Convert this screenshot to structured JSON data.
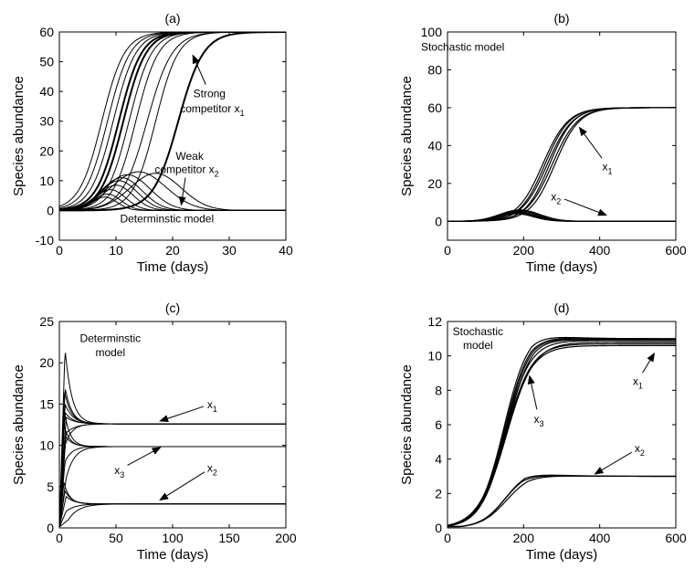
{
  "chart_data": [
    {
      "panel": "(a)",
      "type": "line",
      "title": "(a)",
      "xlabel": "Time (days)",
      "ylabel": "Species abundance",
      "xlim": [
        0,
        40
      ],
      "ylim": [
        -10,
        60
      ],
      "xticks": [
        0,
        10,
        20,
        30,
        40
      ],
      "yticks": [
        -10,
        0,
        10,
        20,
        30,
        40,
        50,
        60
      ],
      "grid": false,
      "series": [
        {
          "group": "x1",
          "logistic": [
            60,
            0.5,
            7.5
          ],
          "weight": 1
        },
        {
          "group": "x1",
          "logistic": [
            60,
            0.5,
            8.5
          ],
          "weight": 1
        },
        {
          "group": "x1",
          "logistic": [
            60,
            0.5,
            9.5
          ],
          "weight": 1
        },
        {
          "group": "x1",
          "logistic": [
            60,
            0.5,
            10.5
          ],
          "weight": 2
        },
        {
          "group": "x1",
          "logistic": [
            60,
            0.5,
            11.3
          ],
          "weight": 2
        },
        {
          "group": "x1",
          "logistic": [
            60,
            0.5,
            12.3
          ],
          "weight": 1
        },
        {
          "group": "x1",
          "logistic": [
            60,
            0.5,
            13.5
          ],
          "weight": 1
        },
        {
          "group": "x1",
          "logistic": [
            60,
            0.45,
            15.5
          ],
          "weight": 1
        },
        {
          "group": "x1",
          "logistic": [
            60,
            0.5,
            17
          ],
          "weight": 1
        },
        {
          "group": "x1",
          "logistic": [
            60,
            0.45,
            21
          ],
          "weight": 2
        },
        {
          "group": "x2",
          "bump": [
            4.5,
            8,
            2.2
          ],
          "weight": 1
        },
        {
          "group": "x2",
          "bump": [
            5.5,
            8.5,
            2.4
          ],
          "weight": 1
        },
        {
          "group": "x2",
          "bump": [
            7,
            9,
            2.7
          ],
          "weight": 1
        },
        {
          "group": "x2",
          "bump": [
            8.5,
            10,
            3.0
          ],
          "weight": 1
        },
        {
          "group": "x2",
          "bump": [
            10,
            10.5,
            3.3
          ],
          "weight": 1
        },
        {
          "group": "x2",
          "bump": [
            11,
            11,
            3.6
          ],
          "weight": 1
        },
        {
          "group": "x2",
          "bump": [
            12,
            12,
            4.0
          ],
          "weight": 1
        },
        {
          "group": "x2",
          "bump": [
            13,
            14,
            4.8
          ],
          "weight": 1
        },
        {
          "group": "x2",
          "bump": [
            12.5,
            17,
            4.5
          ],
          "weight": 1
        }
      ],
      "annotations": [
        {
          "text": "Strong",
          "x": 26.5,
          "y": 38,
          "arrow_to": [
            23.5,
            52.5
          ]
        },
        {
          "text": "competitor x",
          "sub": "1",
          "x": 27,
          "y": 33
        },
        {
          "text": "Weak",
          "x": 23,
          "y": 17
        },
        {
          "text": "competitor x",
          "sub": "2",
          "x": 22.5,
          "y": 12.5,
          "arrow_to": [
            21.5,
            1.5
          ]
        },
        {
          "text": "Determinstic  model",
          "x": 19,
          "y": -4
        }
      ]
    },
    {
      "panel": "(b)",
      "type": "line",
      "title": "(b)",
      "xlabel": "Time (days)",
      "ylabel": "Species abundance",
      "xlim": [
        0,
        600
      ],
      "ylim": [
        -10,
        100
      ],
      "xticks": [
        0,
        200,
        400,
        600
      ],
      "yticks": [
        0,
        20,
        40,
        60,
        80,
        100
      ],
      "grid": false,
      "series": [
        {
          "group": "x1",
          "logistic": [
            60,
            0.03,
            250
          ],
          "weight": 1.2
        },
        {
          "group": "x1",
          "logistic": [
            60,
            0.031,
            256
          ],
          "weight": 1.2
        },
        {
          "group": "x1",
          "logistic": [
            60,
            0.03,
            262
          ],
          "weight": 1.2
        },
        {
          "group": "x1",
          "logistic": [
            60,
            0.032,
            268
          ],
          "weight": 1.2
        },
        {
          "group": "x1",
          "logistic": [
            60,
            0.03,
            275
          ],
          "weight": 1.2
        },
        {
          "group": "x1",
          "logistic": [
            60,
            0.031,
            282
          ],
          "weight": 1.2
        },
        {
          "group": "x2",
          "bump": [
            4.0,
            180,
            45
          ],
          "weight": 1.2
        },
        {
          "group": "x2",
          "bump": [
            4.5,
            182,
            47
          ],
          "weight": 1.2
        },
        {
          "group": "x2",
          "bump": [
            5.0,
            185,
            48
          ],
          "weight": 1.2
        },
        {
          "group": "x2",
          "bump": [
            5.5,
            188,
            50
          ],
          "weight": 1.2
        },
        {
          "group": "x2",
          "bump": [
            6.0,
            190,
            52
          ],
          "weight": 1.2
        }
      ],
      "annotations": [
        {
          "text": "Stochastic  model",
          "x": 40,
          "y": 90
        },
        {
          "text": "x",
          "sub": "1",
          "x": 420,
          "y": 27,
          "arrow_to": [
            345,
            50
          ]
        },
        {
          "text": "x",
          "sub": "2",
          "x": 285,
          "y": 11,
          "arrow_to": [
            420,
            3
          ]
        }
      ]
    },
    {
      "panel": "(c)",
      "type": "line",
      "title": "(c)",
      "xlabel": "Time (days)",
      "ylabel": "Species abundance",
      "xlim": [
        0,
        200
      ],
      "ylim": [
        0,
        25
      ],
      "xticks": [
        0,
        50,
        100,
        150,
        200
      ],
      "yticks": [
        0,
        5,
        10,
        15,
        20,
        25
      ],
      "grid": false,
      "series": [
        {
          "group": "x1",
          "transient": [
            12.6,
            21.7,
            5,
            6,
            0
          ],
          "weight": 1
        },
        {
          "group": "x1",
          "transient": [
            12.6,
            17.0,
            5,
            6,
            0
          ],
          "weight": 1
        },
        {
          "group": "x1",
          "transient": [
            12.6,
            16.5,
            4.5,
            6,
            0
          ],
          "weight": 1
        },
        {
          "group": "x1",
          "transient": [
            12.6,
            15.0,
            5,
            7,
            0
          ],
          "weight": 1
        },
        {
          "group": "x1",
          "transient": [
            12.6,
            14.0,
            5,
            7,
            0
          ],
          "weight": 1
        },
        {
          "group": "x1",
          "transient": [
            12.6,
            13.4,
            6,
            8,
            0
          ],
          "weight": 1
        },
        {
          "group": "x1",
          "transient": [
            12.6,
            10.0,
            5,
            6,
            0
          ],
          "weight": 1
        },
        {
          "group": "x1",
          "transient": [
            12.6,
            11.5,
            6,
            8,
            0
          ],
          "weight": 1
        },
        {
          "group": "x3",
          "transient": [
            9.85,
            14.5,
            4,
            5,
            0
          ],
          "weight": 1
        },
        {
          "group": "x3",
          "transient": [
            9.85,
            12.5,
            4,
            5,
            0
          ],
          "weight": 1
        },
        {
          "group": "x3",
          "transient": [
            9.85,
            11.2,
            5,
            6,
            0
          ],
          "weight": 1
        },
        {
          "group": "x3",
          "transient": [
            9.85,
            8.0,
            5,
            6,
            0
          ],
          "weight": 1
        },
        {
          "group": "x3",
          "transient": [
            9.85,
            6.0,
            6,
            7,
            0
          ],
          "weight": 1
        },
        {
          "group": "x2",
          "transient": [
            2.9,
            5.5,
            4,
            5,
            0
          ],
          "weight": 1
        },
        {
          "group": "x2",
          "transient": [
            2.9,
            4.5,
            5,
            6,
            0
          ],
          "weight": 1
        },
        {
          "group": "x2",
          "transient": [
            2.9,
            3.8,
            6,
            7,
            0
          ],
          "weight": 1
        },
        {
          "group": "x2",
          "transient": [
            2.9,
            2.0,
            6,
            8,
            0
          ],
          "weight": 1
        },
        {
          "group": "x2",
          "transient": [
            2.9,
            1.0,
            8,
            9,
            0
          ],
          "weight": 1
        }
      ],
      "annotations": [
        {
          "text": "Determinstic",
          "x": 45,
          "y": 22.5
        },
        {
          "text": "model",
          "x": 45,
          "y": 20.8
        },
        {
          "text": "x",
          "sub": "1",
          "x": 135,
          "y": 14.5,
          "arrow_to": [
            88,
            12.9
          ]
        },
        {
          "text": "x",
          "sub": "3",
          "x": 53,
          "y": 6.5,
          "arrow_to": [
            90,
            9.8
          ]
        },
        {
          "text": "x",
          "sub": "2",
          "x": 135,
          "y": 6.8,
          "arrow_to": [
            88,
            3.3
          ]
        }
      ]
    },
    {
      "panel": "(d)",
      "type": "line",
      "title": "(d)",
      "xlabel": "Time (days)",
      "ylabel": "Species abundance",
      "xlim": [
        0,
        600
      ],
      "ylim": [
        0,
        12
      ],
      "xticks": [
        0,
        200,
        400,
        600
      ],
      "yticks": [
        0,
        2,
        4,
        6,
        8,
        10,
        12
      ],
      "grid": false,
      "series": [
        {
          "group": "x3",
          "overshoot": [
            11.0,
            11.5,
            0.03,
            150,
            220,
            60
          ],
          "weight": 1.2
        },
        {
          "group": "x3",
          "overshoot": [
            11.0,
            11.6,
            0.031,
            148,
            222,
            62
          ],
          "weight": 1.2
        },
        {
          "group": "x3",
          "overshoot": [
            10.95,
            11.4,
            0.03,
            152,
            225,
            60
          ],
          "weight": 1.2
        },
        {
          "group": "x3",
          "overshoot": [
            10.9,
            11.3,
            0.03,
            155,
            228,
            65
          ],
          "weight": 1.2
        },
        {
          "group": "x1",
          "logistic": [
            10.6,
            0.028,
            150
          ],
          "weight": 1.2
        },
        {
          "group": "x1",
          "logistic": [
            10.7,
            0.029,
            152
          ],
          "weight": 1.2
        },
        {
          "group": "x1",
          "logistic": [
            10.8,
            0.028,
            155
          ],
          "weight": 1.2
        },
        {
          "group": "x1",
          "logistic": [
            10.9,
            0.03,
            150
          ],
          "weight": 1.2
        },
        {
          "group": "x2",
          "overshoot": [
            3.0,
            3.3,
            0.032,
            150,
            200,
            60
          ],
          "weight": 1.2
        },
        {
          "group": "x2",
          "overshoot": [
            3.0,
            3.45,
            0.031,
            152,
            205,
            60
          ],
          "weight": 1.2
        },
        {
          "group": "x2",
          "overshoot": [
            3.0,
            3.2,
            0.03,
            155,
            210,
            62
          ],
          "weight": 1.2
        }
      ],
      "annotations": [
        {
          "text": "Stochastic",
          "x": 80,
          "y": 11.2
        },
        {
          "text": "model",
          "x": 80,
          "y": 10.4
        },
        {
          "text": "x",
          "sub": "3",
          "x": 240,
          "y": 6.1,
          "arrow_to": [
            215,
            8.9
          ]
        },
        {
          "text": "x",
          "sub": "1",
          "x": 500,
          "y": 8.3,
          "arrow_to": [
            545,
            10.2
          ]
        },
        {
          "text": "x",
          "sub": "2",
          "x": 505,
          "y": 4.4,
          "arrow_to": [
            385,
            3.1
          ]
        }
      ]
    }
  ]
}
